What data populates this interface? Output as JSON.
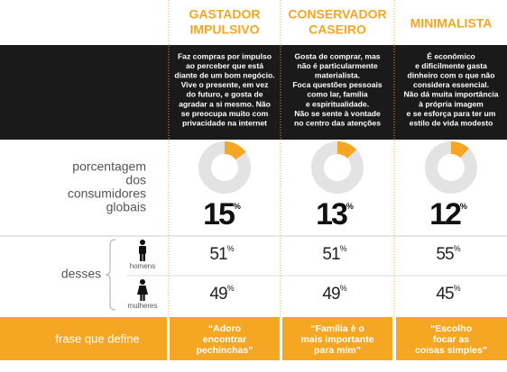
{
  "row_labels": {
    "share": [
      "porcentagem",
      "dos",
      "consumidores",
      "globais"
    ],
    "of_these": "desses",
    "men": "homens",
    "women": "mulheres",
    "phrase": "frase que define"
  },
  "percent_sign": "%",
  "profiles": [
    {
      "title": [
        "GASTADOR",
        "IMPULSIVO"
      ],
      "description": [
        "Faz compras por impulso",
        "ao perceber que está",
        "diante de um bom negócio.",
        "Vive o presente, em vez",
        "do futuro, e gosta de",
        "agradar a si mesmo. Não",
        "se preocupa muito com",
        "privacidade na internet"
      ],
      "share": 15,
      "men": 51,
      "women": 49,
      "phrase": [
        "“Adoro",
        "encontrar",
        "pechinchas”"
      ]
    },
    {
      "title": [
        "CONSERVADOR",
        "CASEIRO"
      ],
      "description": [
        "Gosta de comprar, mas",
        "não é particularmente",
        "materialista.",
        "Foca questões pessoais",
        "como lar, família",
        "e espiritualidade.",
        "Não se sente à vontade",
        "no centro das atenções"
      ],
      "share": 13,
      "men": 51,
      "women": 49,
      "phrase": [
        "“Família é o",
        "mais importante",
        "para mim”"
      ]
    },
    {
      "title": [
        "MINIMALISTA"
      ],
      "description": [
        "É econômico",
        "e dificilmente gasta",
        "dinheiro com o que não",
        "considera essencial.",
        "Não dá muita importância",
        "à própria imagem",
        "e se esforça para ter um",
        "estilo de vida modesto"
      ],
      "share": 12,
      "men": 55,
      "women": 45,
      "phrase": [
        "“Escolho",
        "focar as",
        "coisas simples”"
      ]
    }
  ]
}
